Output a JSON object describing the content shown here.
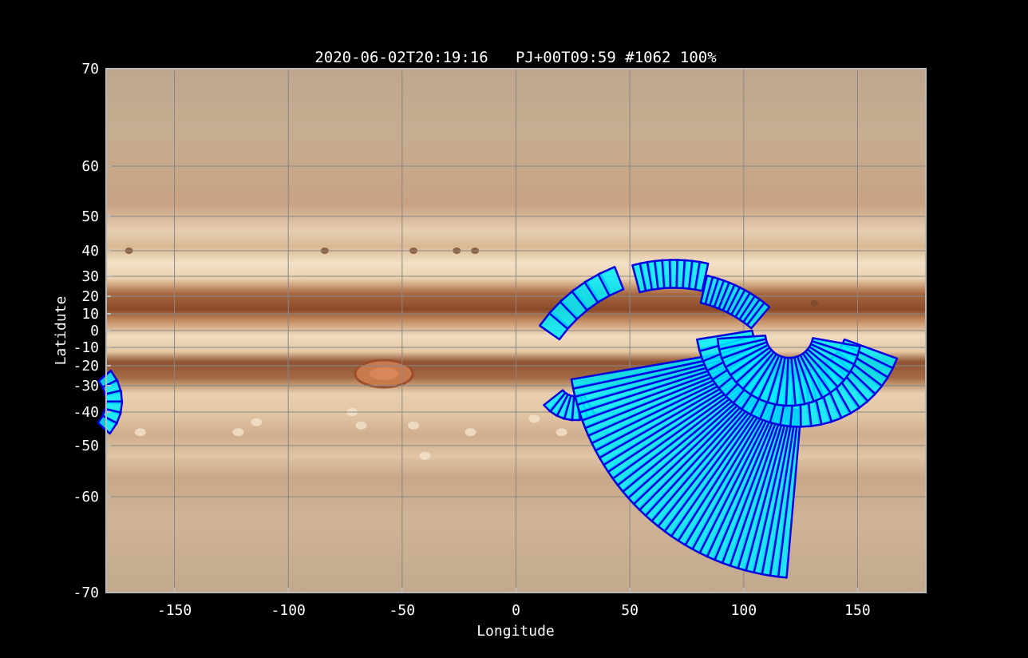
{
  "chart_data": {
    "type": "scatter",
    "title": "2020-06-02T20:19:16   PJ+00T09:59 #1062 100%",
    "xlabel": "Longitude",
    "ylabel": "Latidute",
    "xlim": [
      -180,
      180
    ],
    "ylim": [
      -70,
      70
    ],
    "y_scale": "planetographic-latitude (nonlinear)",
    "x_ticks": [
      -150,
      -100,
      -50,
      0,
      50,
      100,
      150
    ],
    "y_ticks": [
      70,
      60,
      50,
      40,
      30,
      20,
      10,
      0,
      -10,
      -20,
      -30,
      -40,
      -50,
      -60,
      -70
    ],
    "grid": true,
    "background": "Jupiter cylindrical map",
    "colors": {
      "footprint_fill": "#00f0ff",
      "footprint_edge": "#0000e0",
      "grid": "#888888",
      "frame": "#bbbbbb"
    },
    "series": [
      {
        "type": "footprint-fan",
        "lon_range": [
          20,
          113
        ],
        "lat_range": [
          18,
          41
        ]
      },
      {
        "type": "footprint-fan",
        "lon_range": [
          19,
          52
        ],
        "lat_range": [
          -31,
          -42
        ]
      },
      {
        "type": "footprint-fan",
        "lon_range": [
          70,
          180
        ],
        "lat_range": [
          5,
          -70
        ]
      },
      {
        "type": "footprint-fan",
        "lon_range": [
          -180,
          -172
        ],
        "lat_range": [
          -24,
          -50
        ]
      }
    ]
  }
}
